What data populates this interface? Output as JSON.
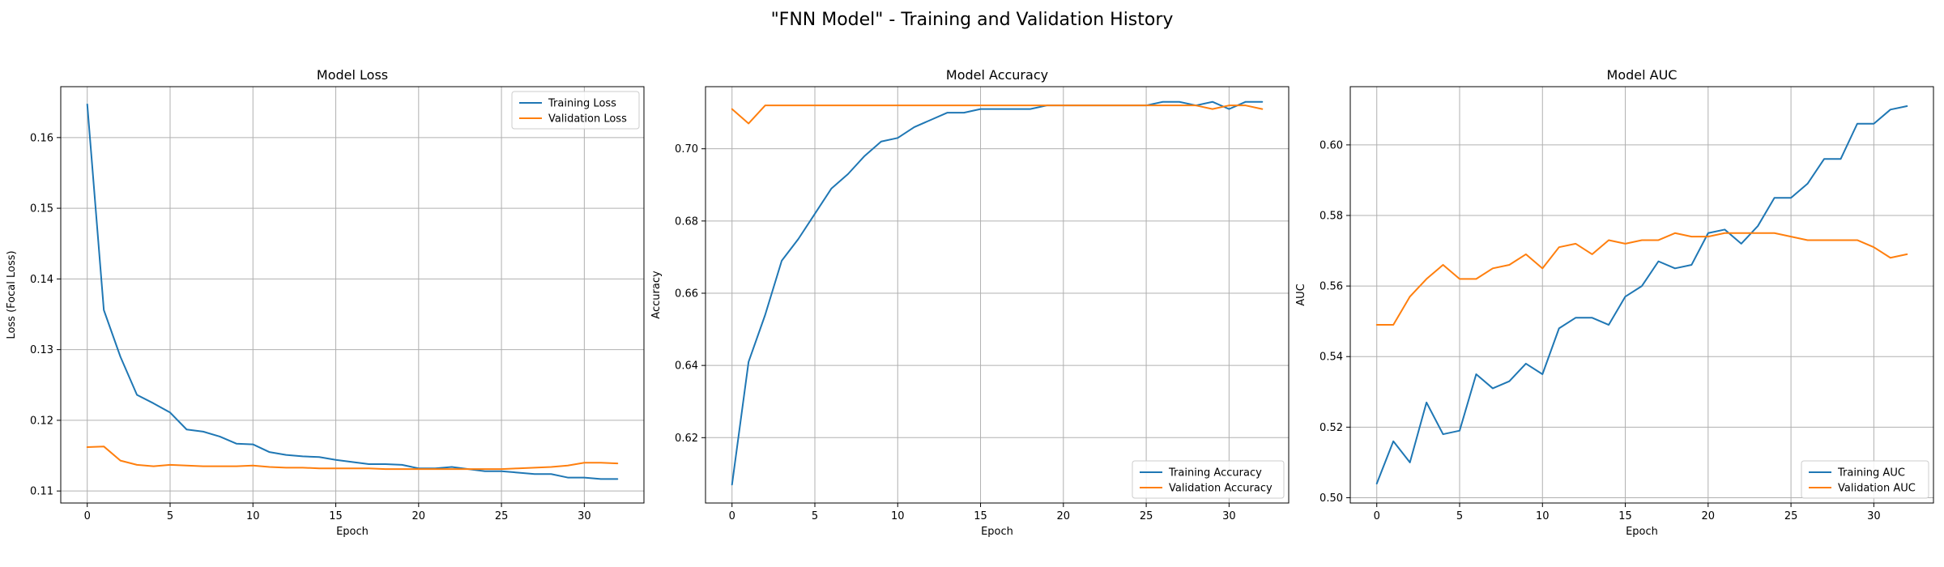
{
  "suptitle": "\"FNN Model\" - Training and Validation History",
  "colors": {
    "training": "#1f77b4",
    "validation": "#ff7f0e",
    "grid": "#b0b0b0"
  },
  "chart_data": [
    {
      "type": "line",
      "title": "Model Loss",
      "xlabel": "Epoch",
      "ylabel": "Loss (Focal Loss)",
      "xlim": [
        -1.6,
        33.6
      ],
      "ylim": [
        0.1083,
        0.1672
      ],
      "xticks": [
        0,
        5,
        10,
        15,
        20,
        25,
        30
      ],
      "yticks": [
        0.11,
        0.12,
        0.13,
        0.14,
        0.15,
        0.16
      ],
      "ytick_labels": [
        "0.11",
        "0.12",
        "0.13",
        "0.14",
        "0.15",
        "0.16"
      ],
      "grid": true,
      "legend_position": "upper-right",
      "x": [
        0,
        1,
        2,
        3,
        4,
        5,
        6,
        7,
        8,
        9,
        10,
        11,
        12,
        13,
        14,
        15,
        16,
        17,
        18,
        19,
        20,
        21,
        22,
        23,
        24,
        25,
        26,
        27,
        28,
        29,
        30,
        31,
        32
      ],
      "series": [
        {
          "name": "Training Loss",
          "color": "#1f77b4",
          "values": [
            0.1647,
            0.1356,
            0.129,
            0.1236,
            0.1224,
            0.1211,
            0.1187,
            0.1184,
            0.1177,
            0.1167,
            0.1166,
            0.1155,
            0.1151,
            0.1149,
            0.1148,
            0.1144,
            0.1141,
            0.1138,
            0.1138,
            0.1137,
            0.1132,
            0.1132,
            0.1134,
            0.1131,
            0.1128,
            0.1128,
            0.1126,
            0.1124,
            0.1124,
            0.1119,
            0.1119,
            0.1117,
            0.1117
          ]
        },
        {
          "name": "Validation Loss",
          "color": "#ff7f0e",
          "values": [
            0.1162,
            0.1163,
            0.1143,
            0.1137,
            0.1135,
            0.1137,
            0.1136,
            0.1135,
            0.1135,
            0.1135,
            0.1136,
            0.1134,
            0.1133,
            0.1133,
            0.1132,
            0.1132,
            0.1132,
            0.1132,
            0.1131,
            0.1131,
            0.1131,
            0.1131,
            0.1131,
            0.1131,
            0.1131,
            0.1131,
            0.1132,
            0.1133,
            0.1134,
            0.1136,
            0.114,
            0.114,
            0.1139
          ]
        }
      ]
    },
    {
      "type": "line",
      "title": "Model Accuracy",
      "xlabel": "Epoch",
      "ylabel": "Accuracy",
      "xlim": [
        -1.6,
        33.6
      ],
      "ylim": [
        0.6019,
        0.7172
      ],
      "xticks": [
        0,
        5,
        10,
        15,
        20,
        25,
        30
      ],
      "yticks": [
        0.62,
        0.64,
        0.66,
        0.68,
        0.7
      ],
      "ytick_labels": [
        "0.62",
        "0.64",
        "0.66",
        "0.68",
        "0.70"
      ],
      "grid": true,
      "legend_position": "lower-right",
      "x": [
        0,
        1,
        2,
        3,
        4,
        5,
        6,
        7,
        8,
        9,
        10,
        11,
        12,
        13,
        14,
        15,
        16,
        17,
        18,
        19,
        20,
        21,
        22,
        23,
        24,
        25,
        26,
        27,
        28,
        29,
        30,
        31,
        32
      ],
      "series": [
        {
          "name": "Training Accuracy",
          "color": "#1f77b4",
          "values": [
            0.607,
            0.641,
            0.654,
            0.669,
            0.675,
            0.682,
            0.689,
            0.693,
            0.698,
            0.702,
            0.703,
            0.706,
            0.708,
            0.71,
            0.71,
            0.711,
            0.711,
            0.711,
            0.711,
            0.712,
            0.712,
            0.712,
            0.712,
            0.712,
            0.712,
            0.712,
            0.713,
            0.713,
            0.712,
            0.713,
            0.711,
            0.713,
            0.713
          ]
        },
        {
          "name": "Validation Accuracy",
          "color": "#ff7f0e",
          "values": [
            0.711,
            0.707,
            0.712,
            0.712,
            0.712,
            0.712,
            0.712,
            0.712,
            0.712,
            0.712,
            0.712,
            0.712,
            0.712,
            0.712,
            0.712,
            0.712,
            0.712,
            0.712,
            0.712,
            0.712,
            0.712,
            0.712,
            0.712,
            0.712,
            0.712,
            0.712,
            0.712,
            0.712,
            0.712,
            0.711,
            0.712,
            0.712,
            0.711
          ]
        }
      ]
    },
    {
      "type": "line",
      "title": "Model AUC",
      "xlabel": "Epoch",
      "ylabel": "AUC",
      "xlim": [
        -1.6,
        33.6
      ],
      "ylim": [
        0.4985,
        0.6165
      ],
      "xticks": [
        0,
        5,
        10,
        15,
        20,
        25,
        30
      ],
      "yticks": [
        0.5,
        0.52,
        0.54,
        0.56,
        0.58,
        0.6
      ],
      "ytick_labels": [
        "0.50",
        "0.52",
        "0.54",
        "0.56",
        "0.58",
        "0.60"
      ],
      "grid": true,
      "legend_position": "lower-right",
      "x": [
        0,
        1,
        2,
        3,
        4,
        5,
        6,
        7,
        8,
        9,
        10,
        11,
        12,
        13,
        14,
        15,
        16,
        17,
        18,
        19,
        20,
        21,
        22,
        23,
        24,
        25,
        26,
        27,
        28,
        29,
        30,
        31,
        32
      ],
      "series": [
        {
          "name": "Training AUC",
          "color": "#1f77b4",
          "values": [
            0.504,
            0.516,
            0.51,
            0.527,
            0.518,
            0.519,
            0.535,
            0.531,
            0.533,
            0.538,
            0.535,
            0.548,
            0.551,
            0.551,
            0.549,
            0.557,
            0.56,
            0.567,
            0.565,
            0.566,
            0.575,
            0.576,
            0.572,
            0.577,
            0.585,
            0.585,
            0.589,
            0.596,
            0.596,
            0.606,
            0.606,
            0.61,
            0.611
          ]
        },
        {
          "name": "Validation AUC",
          "color": "#ff7f0e",
          "values": [
            0.549,
            0.549,
            0.557,
            0.562,
            0.566,
            0.562,
            0.562,
            0.565,
            0.566,
            0.569,
            0.565,
            0.571,
            0.572,
            0.569,
            0.573,
            0.572,
            0.573,
            0.573,
            0.575,
            0.574,
            0.574,
            0.575,
            0.575,
            0.575,
            0.575,
            0.574,
            0.573,
            0.573,
            0.573,
            0.573,
            0.571,
            0.568,
            0.569
          ]
        }
      ]
    }
  ]
}
